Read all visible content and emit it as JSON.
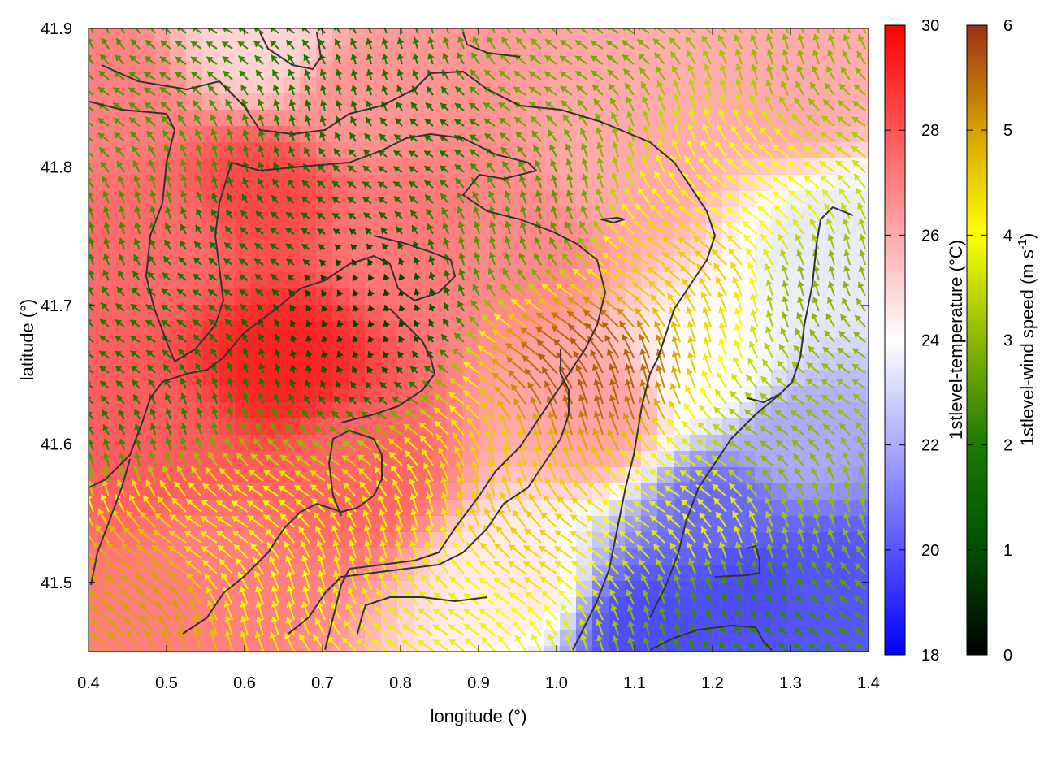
{
  "chart_data": {
    "type": "heatmap",
    "xlabel": "longitude (°)",
    "ylabel": "latitude (°)",
    "xlim": [
      0.4,
      1.4
    ],
    "ylim": [
      41.45,
      41.9
    ],
    "xticks": [
      "0.4",
      "0.5",
      "0.6",
      "0.7",
      "0.8",
      "0.9",
      "1.0",
      "1.1",
      "1.2",
      "1.3",
      "1.4"
    ],
    "yticks": [
      "41.5",
      "41.6",
      "41.7",
      "41.8",
      "41.9"
    ],
    "grid": false,
    "colorbars": [
      {
        "label": "1stlevel-temperature (°C)",
        "range": [
          18,
          30
        ],
        "ticks": [
          "18",
          "20",
          "22",
          "24",
          "26",
          "28",
          "30"
        ],
        "colors": [
          "#0000ff",
          "#ffffff",
          "#ff0000"
        ]
      },
      {
        "label_main": "1stlevel-wind speed (m s",
        "label_sup": "-1",
        "label_end": ")",
        "range": [
          0,
          6
        ],
        "ticks": [
          "0",
          "1",
          "2",
          "3",
          "4",
          "5",
          "6"
        ],
        "colors": [
          "#000000",
          "#005000",
          "#1a7a00",
          "#8ab800",
          "#ffff00",
          "#d8a000",
          "#9a3018"
        ]
      }
    ],
    "temperature_regions": [
      {
        "lon": 0.65,
        "lat": 41.66,
        "value": 29.2
      },
      {
        "lon": 0.62,
        "lat": 41.78,
        "value": 28.3
      },
      {
        "lon": 0.48,
        "lat": 41.6,
        "value": 27.8
      },
      {
        "lon": 0.5,
        "lat": 41.75,
        "value": 27.5
      },
      {
        "lon": 0.8,
        "lat": 41.75,
        "value": 27.2
      },
      {
        "lon": 0.75,
        "lat": 41.85,
        "value": 26.5
      },
      {
        "lon": 0.95,
        "lat": 41.74,
        "value": 26.8
      },
      {
        "lon": 0.75,
        "lat": 41.58,
        "value": 27.6
      },
      {
        "lon": 0.55,
        "lat": 41.5,
        "value": 27.0
      },
      {
        "lon": 0.42,
        "lat": 41.85,
        "value": 27.0
      },
      {
        "lon": 1.1,
        "lat": 41.8,
        "value": 26.0
      },
      {
        "lon": 1.05,
        "lat": 41.62,
        "value": 26.2
      },
      {
        "lon": 1.3,
        "lat": 41.85,
        "value": 26.0
      },
      {
        "lon": 0.62,
        "lat": 41.89,
        "value": 25.0
      },
      {
        "lon": 0.95,
        "lat": 41.5,
        "value": 24.5
      },
      {
        "lon": 1.2,
        "lat": 41.65,
        "value": 24.0
      },
      {
        "lon": 1.35,
        "lat": 41.75,
        "value": 23.5
      },
      {
        "lon": 1.3,
        "lat": 41.6,
        "value": 22.0
      },
      {
        "lon": 1.22,
        "lat": 41.55,
        "value": 20.5
      },
      {
        "lon": 1.25,
        "lat": 41.5,
        "value": 19.8
      },
      {
        "lon": 1.12,
        "lat": 41.47,
        "value": 19.8
      },
      {
        "lon": 1.35,
        "lat": 41.5,
        "value": 20.0
      }
    ],
    "wind_regions": [
      {
        "lon": 0.6,
        "lat": 41.75,
        "value": 1.8
      },
      {
        "lon": 0.75,
        "lat": 41.7,
        "value": 0.8
      },
      {
        "lon": 0.8,
        "lat": 41.82,
        "value": 1.8
      },
      {
        "lon": 0.45,
        "lat": 41.65,
        "value": 2.0
      },
      {
        "lon": 0.5,
        "lat": 41.8,
        "value": 2.5
      },
      {
        "lon": 0.95,
        "lat": 41.76,
        "value": 2.5
      },
      {
        "lon": 1.05,
        "lat": 41.65,
        "value": 5.6
      },
      {
        "lon": 0.95,
        "lat": 41.55,
        "value": 4.5
      },
      {
        "lon": 1.18,
        "lat": 41.72,
        "value": 4.5
      },
      {
        "lon": 1.25,
        "lat": 41.78,
        "value": 4.0
      },
      {
        "lon": 0.5,
        "lat": 41.48,
        "value": 5.0
      },
      {
        "lon": 0.6,
        "lat": 41.5,
        "value": 4.0
      },
      {
        "lon": 0.82,
        "lat": 41.5,
        "value": 3.8
      },
      {
        "lon": 1.2,
        "lat": 41.55,
        "value": 3.8
      },
      {
        "lon": 1.3,
        "lat": 41.58,
        "value": 3.0
      },
      {
        "lon": 1.35,
        "lat": 41.7,
        "value": 3.0
      },
      {
        "lon": 1.0,
        "lat": 41.87,
        "value": 2.8
      },
      {
        "lon": 1.25,
        "lat": 41.47,
        "value": 2.2
      },
      {
        "lon": 1.35,
        "lat": 41.88,
        "value": 3.0
      }
    ]
  }
}
